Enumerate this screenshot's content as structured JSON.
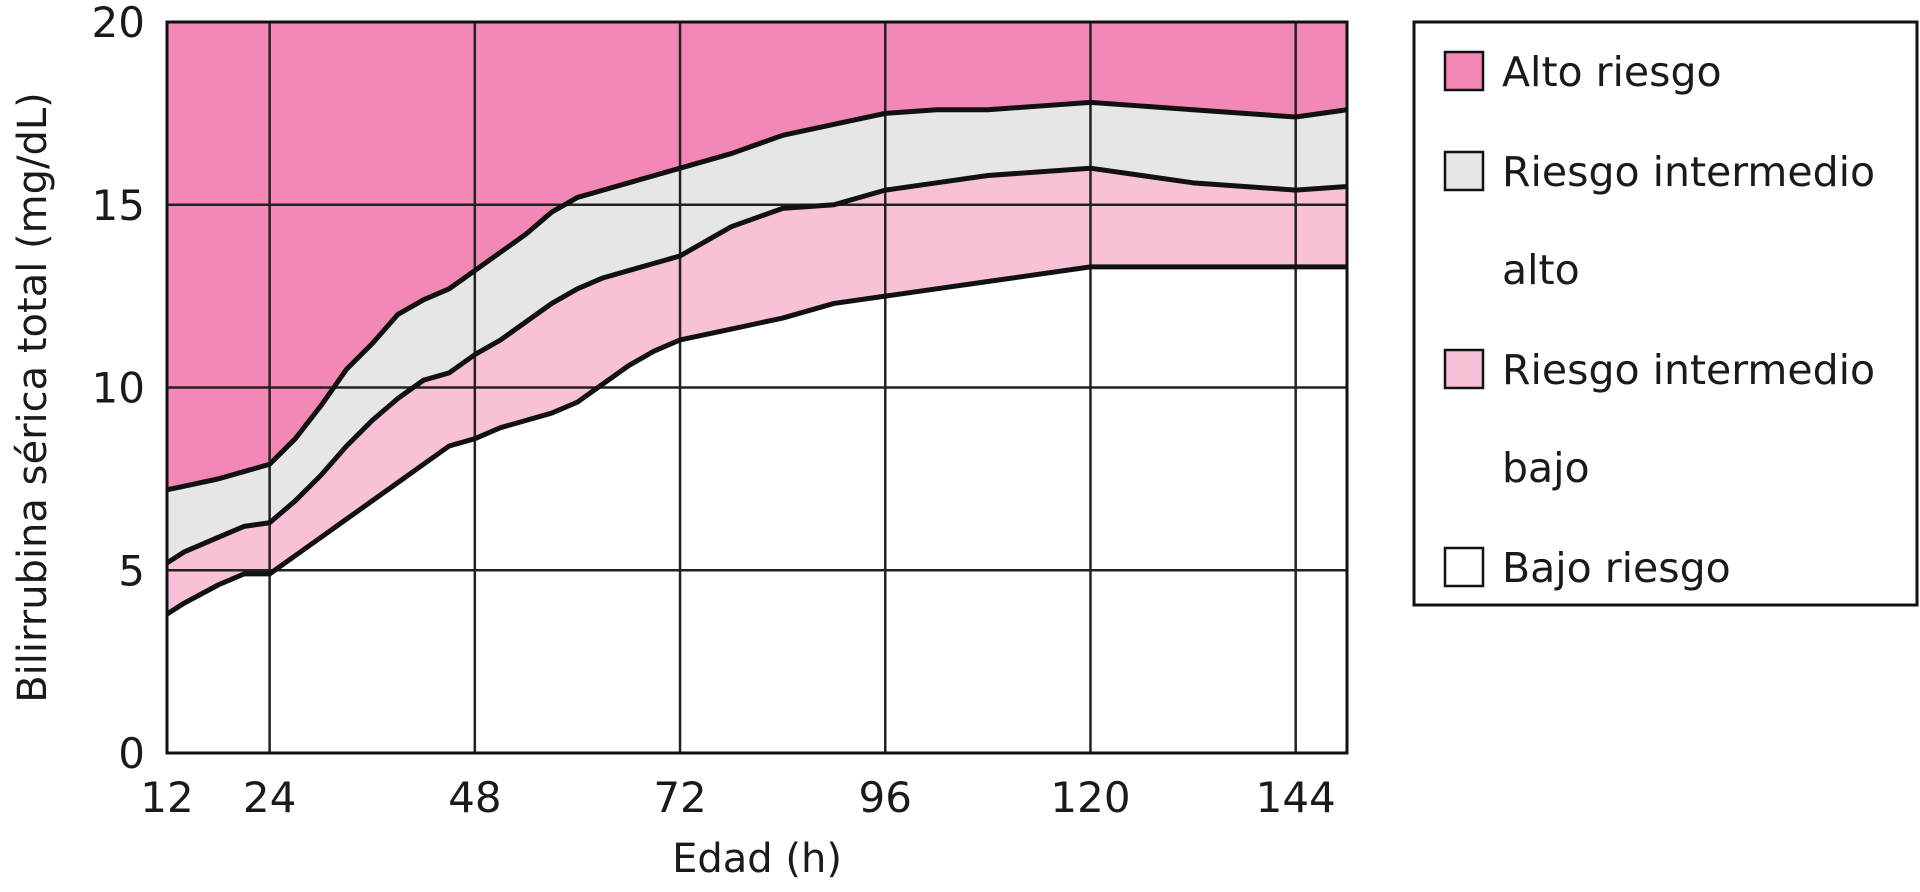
{
  "chart_data": {
    "type": "area",
    "xlabel": "Edad (h)",
    "ylabel": "Bilirrubina sérica total (mg/dL)",
    "xlim": [
      12,
      150
    ],
    "ylim": [
      0,
      20
    ],
    "x_ticks": [
      12,
      24,
      48,
      72,
      96,
      120,
      144
    ],
    "y_ticks": [
      0,
      5,
      10,
      15,
      20
    ],
    "grid": true,
    "legend_position": "right",
    "x": [
      12,
      14,
      18,
      21,
      24,
      27,
      30,
      33,
      36,
      39,
      42,
      45,
      48,
      51,
      54,
      57,
      60,
      63,
      66,
      69,
      72,
      78,
      84,
      90,
      96,
      102,
      108,
      114,
      120,
      126,
      132,
      138,
      144,
      150
    ],
    "series": [
      {
        "name": "Bajo riesgo",
        "color": "#ffffff",
        "upper": [
          3.8,
          4.1,
          4.6,
          4.9,
          4.9,
          5.4,
          5.9,
          6.4,
          6.9,
          7.4,
          7.9,
          8.4,
          8.6,
          8.9,
          9.1,
          9.3,
          9.6,
          10.1,
          10.6,
          11.0,
          11.3,
          11.6,
          11.9,
          12.3,
          12.5,
          12.7,
          12.9,
          13.1,
          13.3,
          13.3,
          13.3,
          13.3,
          13.3,
          13.3
        ]
      },
      {
        "name": "Riesgo intermedio bajo",
        "color": "#f8c1d8",
        "upper": [
          5.2,
          5.5,
          5.9,
          6.2,
          6.3,
          6.9,
          7.6,
          8.4,
          9.1,
          9.7,
          10.2,
          10.4,
          10.9,
          11.3,
          11.8,
          12.3,
          12.7,
          13.0,
          13.2,
          13.4,
          13.6,
          14.4,
          14.9,
          15.0,
          15.4,
          15.6,
          15.8,
          15.9,
          16.0,
          15.8,
          15.6,
          15.5,
          15.4,
          15.5
        ]
      },
      {
        "name": "Riesgo intermedio alto",
        "color": "#e6e6e6",
        "upper": [
          7.2,
          7.3,
          7.5,
          7.7,
          7.9,
          8.6,
          9.5,
          10.5,
          11.2,
          12.0,
          12.4,
          12.7,
          13.2,
          13.7,
          14.2,
          14.8,
          15.2,
          15.4,
          15.6,
          15.8,
          16.0,
          16.4,
          16.9,
          17.2,
          17.5,
          17.6,
          17.6,
          17.7,
          17.8,
          17.7,
          17.6,
          17.5,
          17.4,
          17.6
        ]
      },
      {
        "name": "Alto riesgo",
        "color": "#f288b6",
        "upper": [
          20,
          20,
          20,
          20,
          20,
          20,
          20,
          20,
          20,
          20,
          20,
          20,
          20,
          20,
          20,
          20,
          20,
          20,
          20,
          20,
          20,
          20,
          20,
          20,
          20,
          20,
          20,
          20,
          20,
          20,
          20,
          20,
          20,
          20
        ]
      }
    ],
    "legend": {
      "items": [
        {
          "line1": "Alto riesgo",
          "line2": "",
          "color": "#f288b6"
        },
        {
          "line1": "Riesgo intermedio",
          "line2": "alto",
          "color": "#e6e6e6"
        },
        {
          "line1": "Riesgo intermedio",
          "line2": "bajo",
          "color": "#f8c1d8"
        },
        {
          "line1": "Bajo riesgo",
          "line2": "",
          "color": "#ffffff"
        }
      ]
    }
  }
}
